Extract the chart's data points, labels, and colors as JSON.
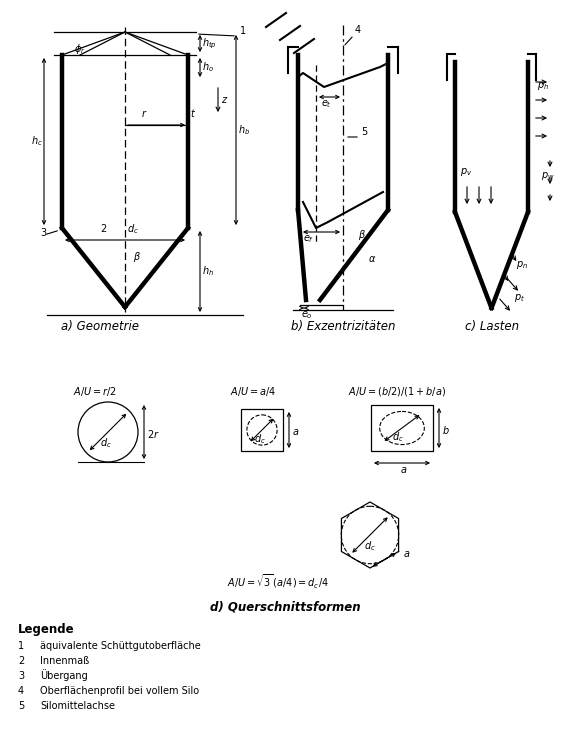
{
  "background": "#ffffff",
  "legend_items": [
    [
      "1",
      "äquivalente Schüttgutoberfläche"
    ],
    [
      "2",
      "Innenmaß"
    ],
    [
      "3",
      "Übergang"
    ],
    [
      "4",
      "Oberflächenprofil bei vollem Silo"
    ],
    [
      "5",
      "Silomittelachse"
    ]
  ]
}
